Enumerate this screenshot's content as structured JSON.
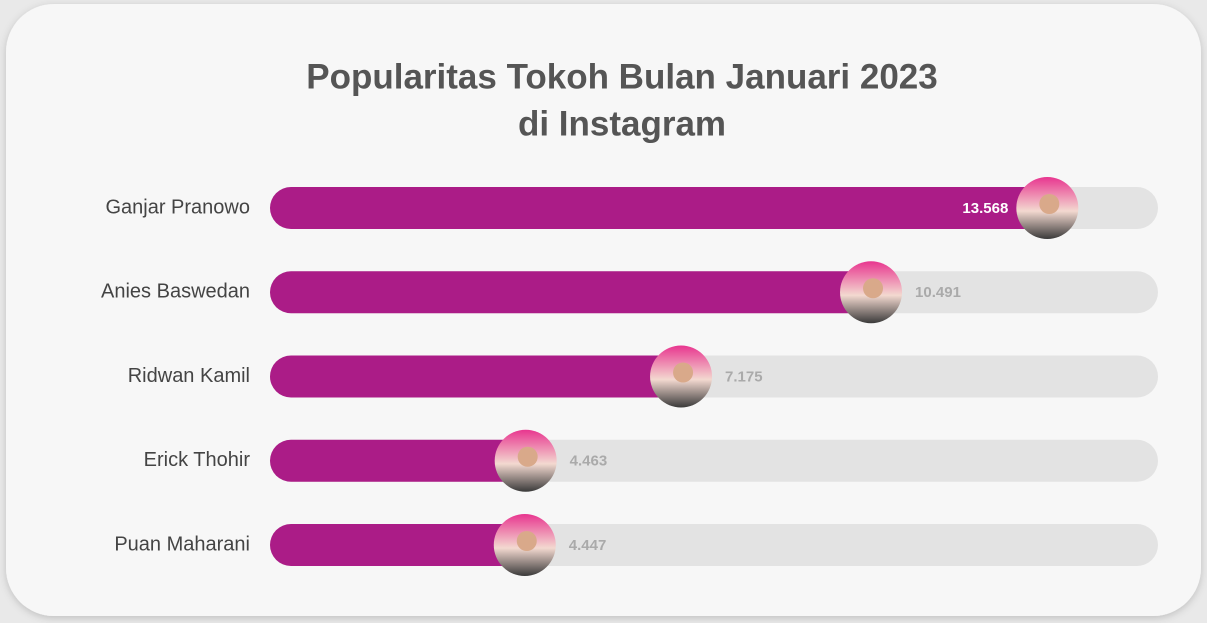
{
  "chart_data": {
    "type": "bar",
    "orientation": "horizontal",
    "title": [
      "Popularitas Tokoh Bulan Januari 2023",
      "di Instagram"
    ],
    "categories": [
      "Ganjar Pranowo",
      "Anies Baswedan",
      "Ridwan Kamil",
      "Erick Thohir",
      "Puan Maharani"
    ],
    "values": [
      13568,
      10491,
      7175,
      4463,
      4447
    ],
    "value_labels": [
      "13.568",
      "10.491",
      "7.175",
      "4.463",
      "4.447"
    ],
    "color": "#ab1c87",
    "xlim": [
      0,
      15500
    ]
  }
}
